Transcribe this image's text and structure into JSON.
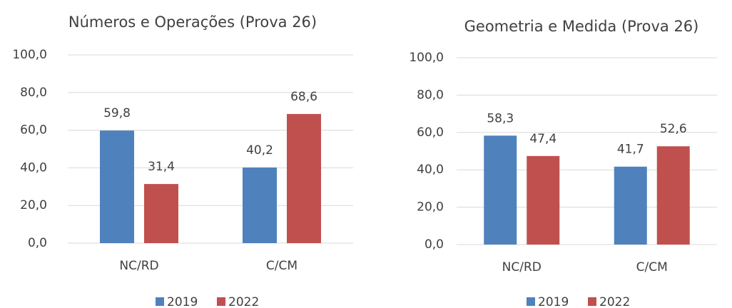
{
  "chart_data": [
    {
      "type": "bar",
      "title": "Números e Operações (Prova 26)",
      "categories": [
        "NC/RD",
        "C/CM"
      ],
      "series": [
        {
          "name": "2019",
          "color": "#4f81bd",
          "values": [
            59.8,
            40.2
          ],
          "value_labels": [
            "59,8",
            "40,2"
          ]
        },
        {
          "name": "2022",
          "color": "#c0504d",
          "values": [
            31.4,
            68.6
          ],
          "value_labels": [
            "31,4",
            "68,6"
          ]
        }
      ],
      "ylim": [
        0,
        100
      ],
      "yticks": [
        {
          "value": 0,
          "label": "0,0"
        },
        {
          "value": 20,
          "label": "20,0"
        },
        {
          "value": 40,
          "label": "40,0"
        },
        {
          "value": 60,
          "label": "60,0"
        },
        {
          "value": 80,
          "label": "80,0"
        },
        {
          "value": 100,
          "label": "100,0"
        }
      ],
      "grid": true,
      "legend": "bottom"
    },
    {
      "type": "bar",
      "title": "Geometria e Medida (Prova 26)",
      "categories": [
        "NC/RD",
        "C/CM"
      ],
      "series": [
        {
          "name": "2019",
          "color": "#4f81bd",
          "values": [
            58.3,
            41.7
          ],
          "value_labels": [
            "58,3",
            "41,7"
          ]
        },
        {
          "name": "2022",
          "color": "#c0504d",
          "values": [
            47.4,
            52.6
          ],
          "value_labels": [
            "47,4",
            "52,6"
          ]
        }
      ],
      "ylim": [
        0,
        100
      ],
      "yticks": [
        {
          "value": 0,
          "label": "0,0"
        },
        {
          "value": 20,
          "label": "20,0"
        },
        {
          "value": 40,
          "label": "40,0"
        },
        {
          "value": 60,
          "label": "60,0"
        },
        {
          "value": 80,
          "label": "80,0"
        },
        {
          "value": 100,
          "label": "100,0"
        }
      ],
      "grid": true,
      "legend": "bottom"
    }
  ]
}
